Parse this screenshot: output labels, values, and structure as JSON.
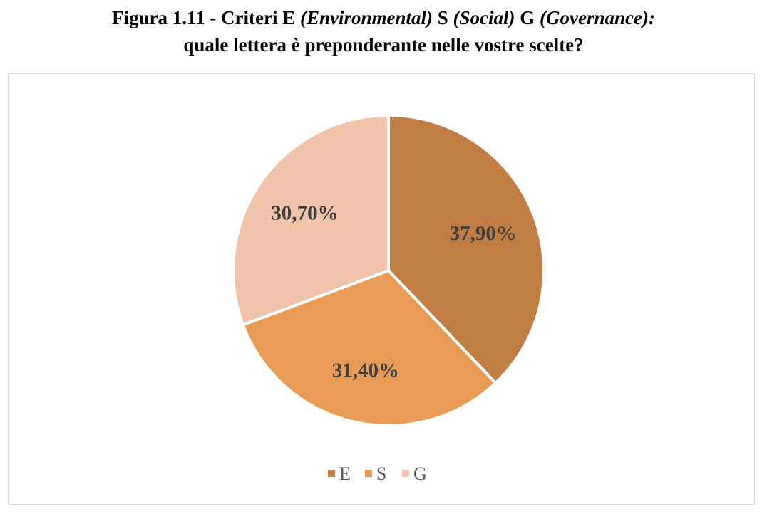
{
  "title": {
    "line1_prefix": "Figura 1.11 - Criteri E ",
    "line1_e_name": "(Environmental)",
    "line1_s": " S ",
    "line1_s_name": "(Social)",
    "line1_g": " G ",
    "line1_g_name": "(Governance):",
    "line2": "quale lettera è preponderante nelle vostre scelte?"
  },
  "chart_data": {
    "type": "pie",
    "title": "Figura 1.11 - Criteri E (Environmental) S (Social) G (Governance): quale lettera è preponderante nelle vostre scelte?",
    "categories": [
      "E",
      "S",
      "G"
    ],
    "values": [
      37.9,
      31.4,
      30.7
    ],
    "labels": [
      "37,90%",
      "31,40%",
      "30,70%"
    ],
    "colors": [
      "#c07e44",
      "#e89b55",
      "#f1c4aa"
    ],
    "start_angle": "12 o'clock, clockwise",
    "legend": "bottom"
  }
}
